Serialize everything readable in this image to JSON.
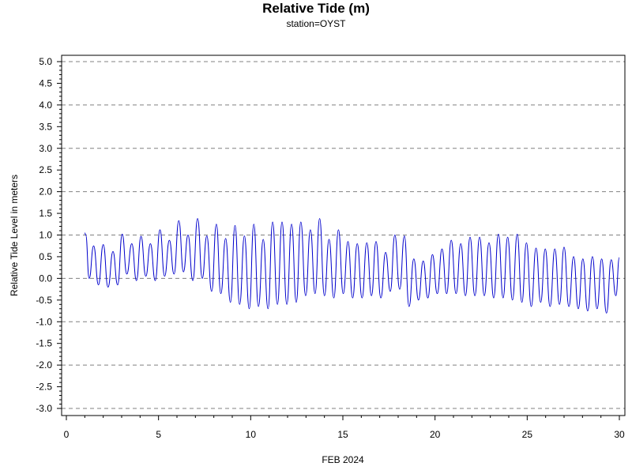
{
  "chart_data": {
    "type": "line",
    "title": "Relative Tide (m)",
    "subtitle": "station=OYST",
    "xlabel": "FEB 2024",
    "ylabel": "Relative Tide Level in meters",
    "xlim": [
      0,
      30
    ],
    "ylim": [
      -3,
      5
    ],
    "x_ticks": [
      0,
      5,
      10,
      15,
      20,
      25,
      30
    ],
    "y_ticks": [
      5.0,
      4.5,
      4.0,
      3.5,
      3.0,
      2.5,
      2.0,
      1.5,
      1.0,
      0.5,
      0.0,
      -0.5,
      -1.0,
      -1.5,
      -2.0,
      -2.5,
      -3.0
    ],
    "y_tick_labels": [
      "5.0",
      "4.5",
      "4.0",
      "3.5",
      "3.0",
      "2.5",
      "2.0",
      "1.5",
      "1.0",
      "0.5",
      "0.0",
      "-0.5",
      "-1.0",
      "-1.5",
      "-2.0",
      "-2.5",
      "-3.0"
    ],
    "y_gridlines": [
      5.0,
      4.0,
      3.0,
      2.0,
      1.0,
      0.0,
      -1.0,
      -2.0,
      -3.0
    ],
    "grid": "horizontal dashed at whole meters",
    "series_color": "#0000cc",
    "series": [
      {
        "x": [
          1.0,
          1.05,
          1.24,
          1.48,
          1.74,
          2.0,
          2.26,
          2.53,
          2.78,
          3.03,
          3.28,
          3.55,
          3.8,
          4.05,
          4.31,
          4.56,
          4.82,
          5.08,
          5.33,
          5.59,
          5.84,
          6.1,
          6.35,
          6.6,
          6.86,
          7.12,
          7.37,
          7.62,
          7.88,
          8.14,
          8.38,
          8.64,
          8.9,
          9.15,
          9.4,
          9.66,
          9.92,
          10.17,
          10.42,
          10.68,
          10.94,
          11.19,
          11.45,
          11.7,
          11.96,
          12.22,
          12.47,
          12.72,
          12.98,
          13.24,
          13.49,
          13.74,
          14.0,
          14.25,
          14.51,
          14.76,
          15.02,
          15.28,
          15.53,
          15.78,
          16.04,
          16.3,
          16.55,
          16.8,
          17.06,
          17.32,
          17.57,
          17.82,
          18.08,
          18.34,
          18.59,
          18.85,
          19.1,
          19.36,
          19.61,
          19.86,
          20.12,
          20.38,
          20.63,
          20.88,
          21.14,
          21.4,
          21.65,
          21.9,
          22.16,
          22.42,
          22.67,
          22.93,
          23.18,
          23.44,
          23.69,
          23.94,
          24.2,
          24.46,
          24.71,
          24.96,
          25.22,
          25.48,
          25.73,
          25.98,
          26.24,
          26.5,
          26.75,
          27.0,
          27.26,
          27.52,
          27.77,
          28.02,
          28.28,
          28.54,
          28.79,
          29.04,
          29.3,
          29.56,
          29.81,
          30.0
        ],
        "y": [
          1.05,
          1.0,
          0.0,
          0.75,
          -0.15,
          0.78,
          -0.2,
          0.62,
          -0.15,
          1.02,
          0.1,
          0.8,
          -0.05,
          0.97,
          0.05,
          0.8,
          -0.05,
          1.12,
          0.05,
          0.88,
          0.1,
          1.33,
          0.15,
          1.0,
          -0.05,
          1.38,
          0.0,
          0.98,
          -0.3,
          1.25,
          -0.35,
          0.92,
          -0.55,
          1.22,
          -0.6,
          0.98,
          -0.7,
          1.25,
          -0.65,
          0.9,
          -0.7,
          1.3,
          -0.6,
          1.3,
          -0.6,
          1.25,
          -0.55,
          1.3,
          -0.4,
          1.12,
          -0.35,
          1.38,
          -0.4,
          0.9,
          -0.45,
          1.12,
          -0.35,
          0.85,
          -0.45,
          0.8,
          -0.45,
          0.82,
          -0.4,
          0.85,
          -0.45,
          0.6,
          -0.3,
          1.0,
          -0.25,
          0.98,
          -0.65,
          0.45,
          -0.5,
          0.4,
          -0.45,
          0.55,
          -0.35,
          0.68,
          -0.35,
          0.88,
          -0.35,
          0.8,
          -0.4,
          0.95,
          -0.4,
          0.95,
          -0.4,
          0.82,
          -0.45,
          1.02,
          -0.45,
          0.95,
          -0.5,
          1.02,
          -0.55,
          0.82,
          -0.65,
          0.7,
          -0.55,
          0.68,
          -0.65,
          0.68,
          -0.6,
          0.72,
          -0.65,
          0.5,
          -0.7,
          0.45,
          -0.75,
          0.5,
          -0.7,
          0.45,
          -0.8,
          0.43,
          -0.4,
          0.48
        ]
      }
    ]
  }
}
